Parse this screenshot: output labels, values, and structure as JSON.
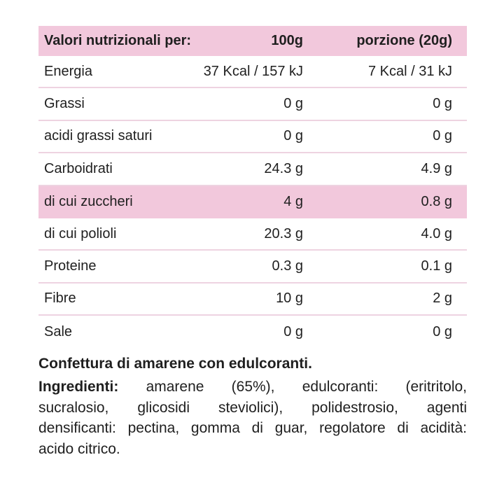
{
  "table": {
    "header": {
      "label": "Valori nutrizionali per:",
      "col_100g": "100g",
      "col_portion": "porzione (20g)"
    },
    "rows": [
      {
        "label": "Energia",
        "per_100g": "37 Kcal / 157 kJ",
        "per_portion": "7 Kcal / 31 kJ",
        "highlight": false
      },
      {
        "label": "Grassi",
        "per_100g": "0 g",
        "per_portion": "0 g",
        "highlight": false
      },
      {
        "label": "acidi grassi saturi",
        "per_100g": "0 g",
        "per_portion": "0 g",
        "highlight": false
      },
      {
        "label": "Carboidrati",
        "per_100g": "24.3 g",
        "per_portion": "4.9 g",
        "highlight": false
      },
      {
        "label": "di cui zuccheri",
        "per_100g": "4 g",
        "per_portion": "0.8 g",
        "highlight": true
      },
      {
        "label": "di cui polioli",
        "per_100g": "20.3 g",
        "per_portion": "4.0 g",
        "highlight": false
      },
      {
        "label": "Proteine",
        "per_100g": "0.3 g",
        "per_portion": "0.1 g",
        "highlight": false
      },
      {
        "label": "Fibre",
        "per_100g": "10 g",
        "per_portion": "2 g",
        "highlight": false
      },
      {
        "label": "Sale",
        "per_100g": "0 g",
        "per_portion": "0 g",
        "highlight": false
      }
    ]
  },
  "notes": {
    "title": "Confettura di amarene con edulcoranti.",
    "ingredients_label": "Ingredienti:",
    "ingredients_line1_rest": "amarene (65%), edulcoranti: (eritritolo,",
    "line2": "sucralosio, glicosidi steviolici), polidestrosio, agenti",
    "line3": "densificanti: pectina, gomma di guar, regolatore di acidità:",
    "line4": "acido citrico."
  },
  "colors": {
    "pink": "#f2c8dc",
    "divider": "#eed3e1",
    "text": "#1f1f1f"
  }
}
